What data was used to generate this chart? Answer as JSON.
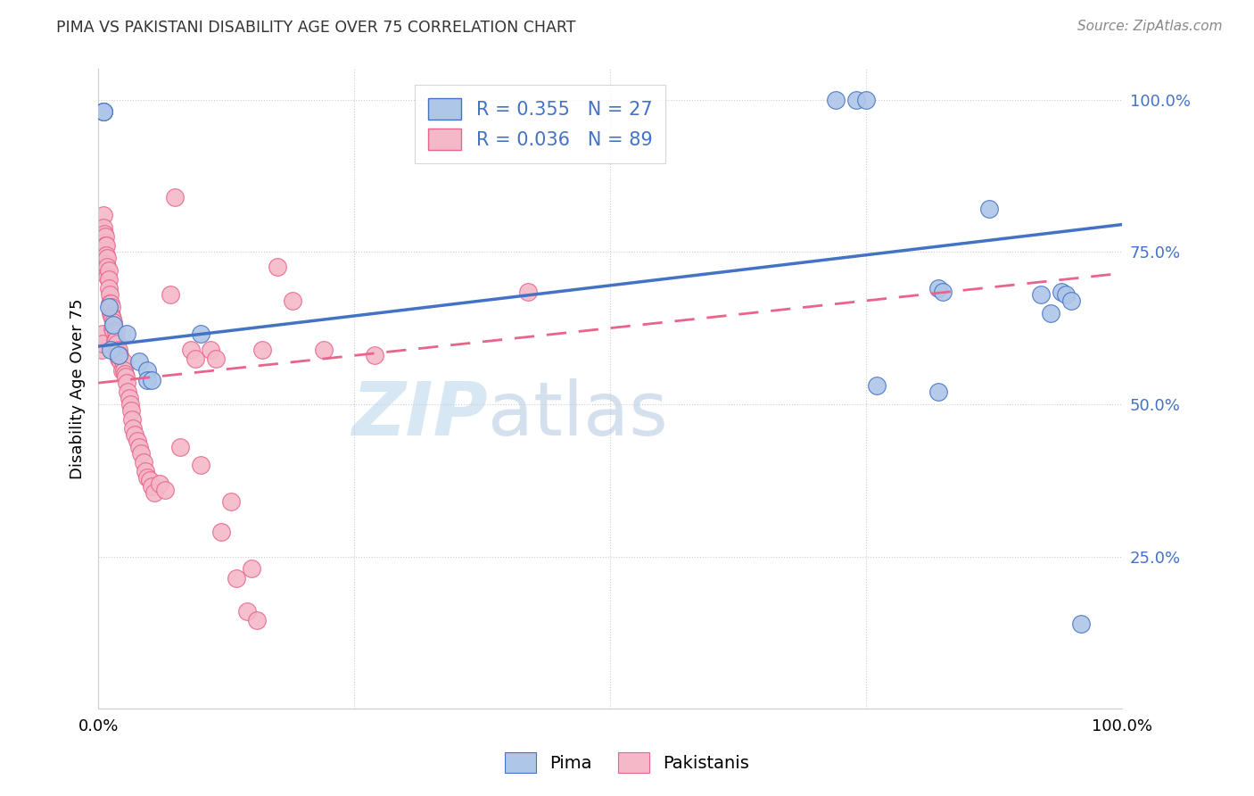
{
  "title": "PIMA VS PAKISTANI DISABILITY AGE OVER 75 CORRELATION CHART",
  "source": "Source: ZipAtlas.com",
  "ylabel": "Disability Age Over 75",
  "xlim": [
    0,
    1.0
  ],
  "ylim": [
    0,
    1.0
  ],
  "pima_R": "0.355",
  "pima_N": "27",
  "pak_R": "0.036",
  "pak_N": "89",
  "pima_color": "#aec6e8",
  "pak_color": "#f4b8c8",
  "pima_line_color": "#4472C4",
  "pak_line_color": "#e8648a",
  "legend_pima_label": "Pima",
  "legend_pak_label": "Pakistanis",
  "watermark_zip": "ZIP",
  "watermark_atlas": "atlas",
  "pima_line_start_y": 0.595,
  "pima_line_end_y": 0.795,
  "pak_line_start_y": 0.535,
  "pak_line_end_y": 0.715,
  "pima_x": [
    0.005,
    0.005,
    0.005,
    0.01,
    0.012,
    0.015,
    0.02,
    0.028,
    0.04,
    0.048,
    0.048,
    0.052,
    0.1,
    0.72,
    0.74,
    0.75,
    0.76,
    0.82,
    0.82,
    0.825,
    0.87,
    0.92,
    0.93,
    0.94,
    0.945,
    0.95,
    0.96
  ],
  "pima_y": [
    0.98,
    0.98,
    0.98,
    0.66,
    0.59,
    0.63,
    0.58,
    0.615,
    0.57,
    0.555,
    0.54,
    0.54,
    0.615,
    1.0,
    1.0,
    1.0,
    0.53,
    0.52,
    0.69,
    0.685,
    0.82,
    0.68,
    0.65,
    0.685,
    0.68,
    0.67,
    0.14
  ],
  "pak_x": [
    0.003,
    0.003,
    0.004,
    0.004,
    0.005,
    0.005,
    0.005,
    0.005,
    0.005,
    0.005,
    0.006,
    0.006,
    0.006,
    0.007,
    0.007,
    0.007,
    0.008,
    0.008,
    0.008,
    0.009,
    0.009,
    0.009,
    0.01,
    0.01,
    0.01,
    0.011,
    0.011,
    0.012,
    0.012,
    0.013,
    0.013,
    0.014,
    0.014,
    0.015,
    0.015,
    0.016,
    0.017,
    0.017,
    0.018,
    0.018,
    0.019,
    0.02,
    0.02,
    0.021,
    0.022,
    0.023,
    0.024,
    0.025,
    0.026,
    0.027,
    0.028,
    0.029,
    0.03,
    0.031,
    0.032,
    0.033,
    0.034,
    0.036,
    0.038,
    0.04,
    0.042,
    0.044,
    0.046,
    0.048,
    0.05,
    0.052,
    0.055,
    0.06,
    0.065,
    0.07,
    0.075,
    0.08,
    0.09,
    0.095,
    0.1,
    0.11,
    0.115,
    0.12,
    0.13,
    0.135,
    0.145,
    0.15,
    0.155,
    0.16,
    0.175,
    0.19,
    0.22,
    0.27,
    0.42
  ],
  "pak_y": [
    0.6,
    0.59,
    0.615,
    0.6,
    0.81,
    0.79,
    0.775,
    0.76,
    0.74,
    0.72,
    0.78,
    0.765,
    0.75,
    0.775,
    0.76,
    0.745,
    0.76,
    0.745,
    0.73,
    0.74,
    0.725,
    0.71,
    0.72,
    0.705,
    0.69,
    0.68,
    0.665,
    0.665,
    0.65,
    0.66,
    0.645,
    0.64,
    0.625,
    0.635,
    0.62,
    0.605,
    0.62,
    0.605,
    0.6,
    0.585,
    0.58,
    0.59,
    0.575,
    0.58,
    0.57,
    0.555,
    0.57,
    0.555,
    0.55,
    0.545,
    0.535,
    0.52,
    0.51,
    0.5,
    0.49,
    0.475,
    0.46,
    0.45,
    0.44,
    0.43,
    0.42,
    0.405,
    0.39,
    0.38,
    0.375,
    0.365,
    0.355,
    0.37,
    0.36,
    0.68,
    0.84,
    0.43,
    0.59,
    0.575,
    0.4,
    0.59,
    0.575,
    0.29,
    0.34,
    0.215,
    0.16,
    0.23,
    0.145,
    0.59,
    0.725,
    0.67,
    0.59,
    0.58,
    0.685
  ]
}
